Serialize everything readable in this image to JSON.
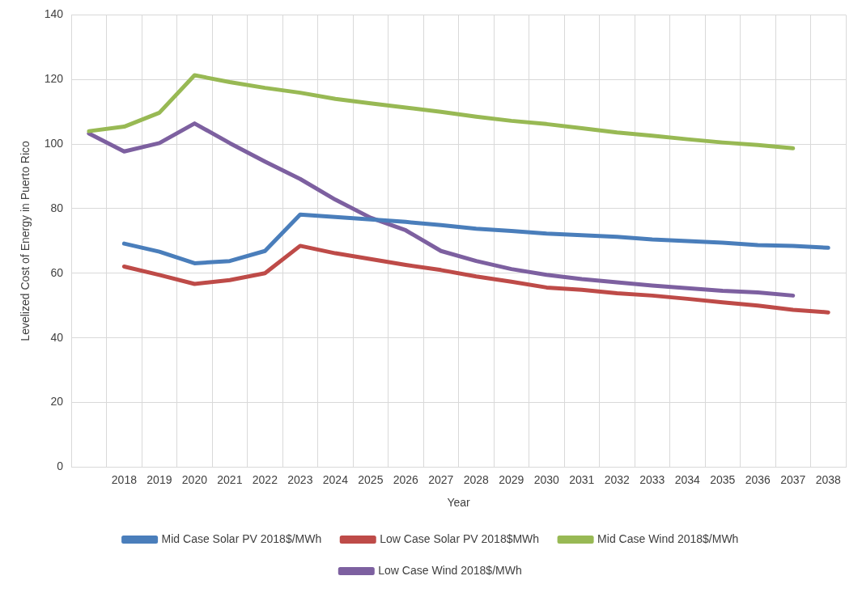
{
  "chart_data": {
    "type": "line",
    "xlabel": "Year",
    "ylabel": "Levelized Cost of Energy in Puerto Rico",
    "categories": [
      null,
      "2018",
      "2019",
      "2020",
      "2021",
      "2022",
      "2023",
      "2024",
      "2025",
      "2026",
      "2027",
      "2028",
      "2029",
      "2030",
      "2031",
      "2032",
      "2033",
      "2034",
      "2035",
      "2036",
      "2037",
      "2038"
    ],
    "ylim": [
      0,
      140
    ],
    "yticks": [
      0,
      20,
      40,
      60,
      80,
      100,
      120,
      140
    ],
    "grid": true,
    "legend": "bottom",
    "marker": "none",
    "line_style": "solid",
    "series": [
      {
        "name": "Mid Case Solar PV 2018$/MWh",
        "color": "#4a7ebb",
        "values": [
          null,
          69.2,
          66.7,
          63.1,
          63.8,
          66.9,
          78.2,
          77.4,
          76.7,
          75.9,
          74.9,
          73.8,
          73.1,
          72.3,
          71.8,
          71.3,
          70.5,
          70,
          69.5,
          68.7,
          68.5,
          67.9
        ]
      },
      {
        "name": "Low Case Solar PV 2018$MWh",
        "color": "#be4b48",
        "values": [
          null,
          62.1,
          59.5,
          56.7,
          57.9,
          60,
          68.5,
          66.2,
          64.4,
          62.6,
          61,
          59,
          57.4,
          55.6,
          54.9,
          53.8,
          53.1,
          52.1,
          51,
          50,
          48.7,
          47.9
        ]
      },
      {
        "name": "Mid Case Wind 2018$/MWh",
        "color": "#98b954",
        "values": [
          104,
          105.4,
          109.7,
          121.3,
          119.2,
          117.4,
          115.9,
          114,
          112.6,
          111.3,
          110,
          108.5,
          107.2,
          106.2,
          104.9,
          103.6,
          102.6,
          101.5,
          100.5,
          99.7,
          98.7,
          null
        ]
      },
      {
        "name": "Low Case Wind 2018$/MWh",
        "color": "#7d60a0",
        "values": [
          103.3,
          97.7,
          100.3,
          106.4,
          100.3,
          94.6,
          89.2,
          82.8,
          77.2,
          73.3,
          66.9,
          63.8,
          61.3,
          59.5,
          58.2,
          57.2,
          56.2,
          55.4,
          54.6,
          54.1,
          53.1,
          null
        ]
      }
    ]
  }
}
